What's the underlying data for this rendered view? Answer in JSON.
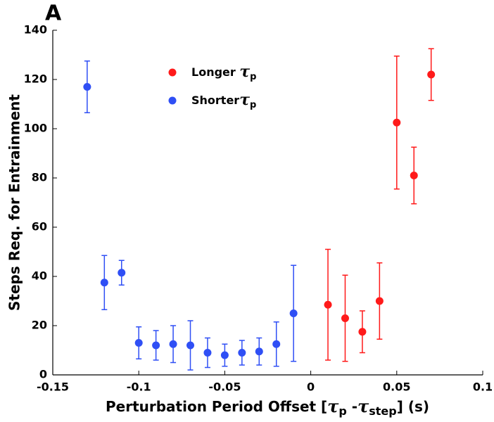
{
  "chart_data": {
    "type": "scatter",
    "panel_label": "A",
    "ylabel": "Steps Req. for Entrainment",
    "xlabel": [
      "Perturbation Period Offset [",
      "τ",
      "p",
      " -",
      "τ",
      "step",
      "] (s)"
    ],
    "xlim": [
      -0.15,
      0.1
    ],
    "xticks": [
      -0.15,
      -0.1,
      -0.05,
      0,
      0.05,
      0.1
    ],
    "ylim": [
      0,
      140
    ],
    "yticks": [
      0,
      20,
      40,
      60,
      80,
      100,
      120,
      140
    ],
    "series": [
      {
        "name": "Longer ",
        "symbol": "τ",
        "subscript": "p",
        "color": "#ff1a1a",
        "x": [
          0.01,
          0.02,
          0.03,
          0.04,
          0.05,
          0.06,
          0.07
        ],
        "values": [
          28.5,
          23,
          17.5,
          30,
          102.5,
          81,
          122
        ],
        "errors": [
          22.5,
          17.5,
          8.5,
          15.5,
          27,
          11.5,
          10.5
        ]
      },
      {
        "name": "Shorter",
        "symbol": "τ",
        "subscript": "p",
        "color": "#2f4ff5",
        "x": [
          -0.13,
          -0.12,
          -0.11,
          -0.1,
          -0.09,
          -0.08,
          -0.07,
          -0.06,
          -0.05,
          -0.04,
          -0.03,
          -0.02,
          -0.01
        ],
        "values": [
          117,
          37.5,
          41.5,
          13,
          12,
          12.5,
          12,
          9,
          8,
          9,
          9.5,
          12.5,
          25
        ],
        "errors": [
          10.5,
          11,
          5,
          6.5,
          6,
          7.5,
          10,
          6,
          4.5,
          5,
          5.5,
          9,
          19.5
        ]
      }
    ]
  }
}
